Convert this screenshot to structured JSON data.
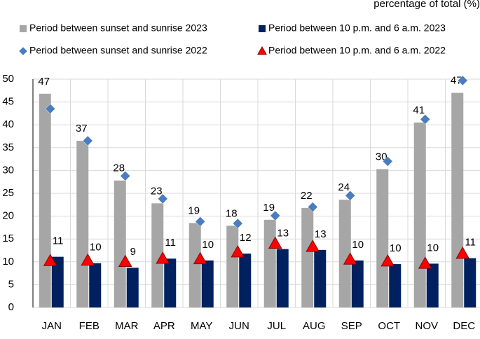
{
  "chart_data": {
    "type": "bar",
    "subtitle": "percentage of total (%)",
    "categories": [
      "JAN",
      "FEB",
      "MAR",
      "APR",
      "MAY",
      "JUN",
      "JUL",
      "AUG",
      "SEP",
      "OCT",
      "NOV",
      "DEC"
    ],
    "series": [
      {
        "name": "Period between sunset and sunrise 2023",
        "color": "#a6a6a6",
        "kind": "bar",
        "values": [
          46.8,
          36.5,
          27.8,
          22.8,
          18.5,
          17.9,
          19.2,
          21.8,
          23.6,
          30.3,
          40.5,
          47.0
        ],
        "value_labels": [
          "47",
          "37",
          "28",
          "23",
          "19",
          "18",
          "19",
          "22",
          "24",
          "30",
          "41",
          "47"
        ]
      },
      {
        "name": "Period between 10 p.m. and 6 a.m. 2023",
        "color": "#002060",
        "kind": "bar",
        "values": [
          11.1,
          9.7,
          8.7,
          10.7,
          10.3,
          11.8,
          12.8,
          12.6,
          10.3,
          9.5,
          9.6,
          10.8
        ],
        "value_labels": [
          "11",
          "10",
          "9",
          "11",
          "10",
          "12",
          "13",
          "13",
          "10",
          "10",
          "10",
          "11"
        ]
      },
      {
        "name": "Period between sunset and sunrise 2022",
        "color": "#4a7cc0",
        "kind": "diamond",
        "values": [
          43.5,
          36.5,
          28.8,
          23.8,
          18.8,
          18.4,
          20.1,
          22.0,
          24.5,
          32.0,
          41.2,
          49.7
        ]
      },
      {
        "name": "Period between 10 p.m. and 6 a.m. 2022",
        "color": "#ff0000",
        "kind": "triangle",
        "values": [
          10.2,
          10.3,
          10.0,
          10.7,
          10.6,
          12.1,
          14.0,
          13.3,
          10.5,
          10.1,
          9.6,
          11.8
        ]
      }
    ],
    "ylim": [
      0,
      50
    ],
    "yticks": [
      0,
      5,
      10,
      15,
      20,
      25,
      30,
      35,
      40,
      45,
      50
    ],
    "grid": true
  }
}
